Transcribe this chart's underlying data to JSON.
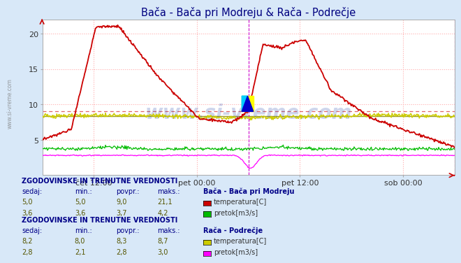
{
  "title_part1": "Bača - ",
  "title_part2": "Bača pri Modreju",
  "title_part3": " & Rača - Podrečje",
  "bg_color": "#d8e8f8",
  "plot_bg_color": "#ffffff",
  "grid_color": "#ffaaaa",
  "ylim": [
    0,
    22
  ],
  "yticks": [
    5,
    10,
    15,
    20
  ],
  "xlabel_ticks": [
    "čet 12:00",
    "pet 00:00",
    "pet 12:00",
    "sob 00:00"
  ],
  "xlabel_tick_positions": [
    0.125,
    0.375,
    0.625,
    0.875
  ],
  "n_points": 576,
  "watermark": "www.si-vreme.com",
  "watermark_color": "#2244aa",
  "watermark_alpha": 0.22,
  "colors": {
    "baca_temp": "#cc0000",
    "baca_pretok": "#00bb00",
    "raca_temp": "#cccc00",
    "raca_pretok": "#ff00ff"
  },
  "avg_line_baca": 9.0,
  "avg_line_raca": 8.3,
  "table1_title": "ZGODOVINSKE IN TRENUTNE VREDNOSTI",
  "table1_station": "Bača - Bača pri Modreju",
  "table1_rows": [
    {
      "sedaj": "5,0",
      "min": "5,0",
      "povpr": "9,0",
      "maks": "21,1",
      "label": "temperatura[C]",
      "color": "#cc0000"
    },
    {
      "sedaj": "3,6",
      "min": "3,6",
      "povpr": "3,7",
      "maks": "4,2",
      "label": "pretok[m3/s]",
      "color": "#00bb00"
    }
  ],
  "table2_title": "ZGODOVINSKE IN TRENUTNE VREDNOSTI",
  "table2_station": "Rača - Podrečje",
  "table2_rows": [
    {
      "sedaj": "8,2",
      "min": "8,0",
      "povpr": "8,3",
      "maks": "8,7",
      "label": "temperatura[C]",
      "color": "#cccc00"
    },
    {
      "sedaj": "2,8",
      "min": "2,1",
      "povpr": "2,8",
      "maks": "3,0",
      "label": "pretok[m3/s]",
      "color": "#ff00ff"
    }
  ]
}
